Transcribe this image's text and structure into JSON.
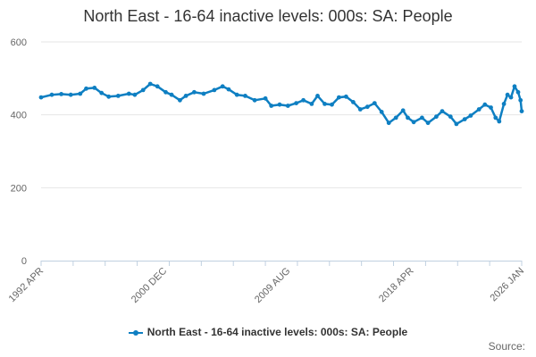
{
  "chart_data": {
    "type": "line",
    "title": "North East - 16-64 inactive levels: 000s: SA: People",
    "xlabel": "",
    "ylabel": "",
    "ylim": [
      0,
      600
    ],
    "yticks": [
      0,
      200,
      400,
      600
    ],
    "xlim": [
      "1992-04",
      "2026-01"
    ],
    "xticks": [
      {
        "date": "1992-04",
        "label": "1992 APR"
      },
      {
        "date": "2000-12",
        "label": "2000 DEC"
      },
      {
        "date": "2009-08",
        "label": "2009 AUG"
      },
      {
        "date": "2018-04",
        "label": "2018 APR"
      },
      {
        "date": "2026-01",
        "label": "2026 JAN"
      }
    ],
    "grid": true,
    "legend_position": "bottom",
    "series": [
      {
        "name": "North East - 16-64 inactive levels: 000s: SA: People",
        "color": "#0e7fc2",
        "points": [
          [
            "1992-04",
            448
          ],
          [
            "1993-01",
            455
          ],
          [
            "1993-09",
            457
          ],
          [
            "1994-05",
            455
          ],
          [
            "1995-01",
            458
          ],
          [
            "1995-06",
            472
          ],
          [
            "1996-01",
            474
          ],
          [
            "1996-07",
            460
          ],
          [
            "1997-01",
            450
          ],
          [
            "1997-09",
            452
          ],
          [
            "1998-06",
            458
          ],
          [
            "1998-11",
            455
          ],
          [
            "1999-06",
            468
          ],
          [
            "1999-12",
            485
          ],
          [
            "2000-06",
            478
          ],
          [
            "2001-01",
            462
          ],
          [
            "2001-06",
            455
          ],
          [
            "2002-01",
            440
          ],
          [
            "2002-06",
            452
          ],
          [
            "2003-01",
            462
          ],
          [
            "2003-09",
            458
          ],
          [
            "2004-06",
            468
          ],
          [
            "2005-01",
            478
          ],
          [
            "2005-06",
            470
          ],
          [
            "2006-01",
            455
          ],
          [
            "2006-08",
            452
          ],
          [
            "2007-04",
            440
          ],
          [
            "2008-01",
            445
          ],
          [
            "2008-06",
            425
          ],
          [
            "2009-01",
            428
          ],
          [
            "2009-08",
            425
          ],
          [
            "2010-03",
            432
          ],
          [
            "2010-09",
            440
          ],
          [
            "2011-04",
            430
          ],
          [
            "2011-09",
            452
          ],
          [
            "2012-03",
            430
          ],
          [
            "2012-09",
            428
          ],
          [
            "2013-03",
            448
          ],
          [
            "2013-09",
            450
          ],
          [
            "2014-03",
            435
          ],
          [
            "2014-09",
            415
          ],
          [
            "2015-03",
            422
          ],
          [
            "2015-09",
            432
          ],
          [
            "2016-03",
            408
          ],
          [
            "2016-09",
            378
          ],
          [
            "2017-03",
            392
          ],
          [
            "2017-09",
            412
          ],
          [
            "2018-01",
            392
          ],
          [
            "2018-06",
            380
          ],
          [
            "2019-01",
            392
          ],
          [
            "2019-06",
            378
          ],
          [
            "2020-01",
            395
          ],
          [
            "2020-06",
            410
          ],
          [
            "2021-01",
            395
          ],
          [
            "2021-06",
            375
          ],
          [
            "2022-01",
            388
          ],
          [
            "2022-06",
            398
          ],
          [
            "2023-01",
            415
          ],
          [
            "2023-06",
            428
          ],
          [
            "2023-11",
            420
          ],
          [
            "2024-03",
            392
          ],
          [
            "2024-06",
            382
          ],
          [
            "2024-10",
            430
          ],
          [
            "2025-01",
            455
          ],
          [
            "2025-04",
            448
          ],
          [
            "2025-07",
            478
          ],
          [
            "2025-10",
            462
          ],
          [
            "2025-12",
            440
          ],
          [
            "2026-01",
            410
          ]
        ]
      }
    ],
    "source_label": "Source:"
  }
}
